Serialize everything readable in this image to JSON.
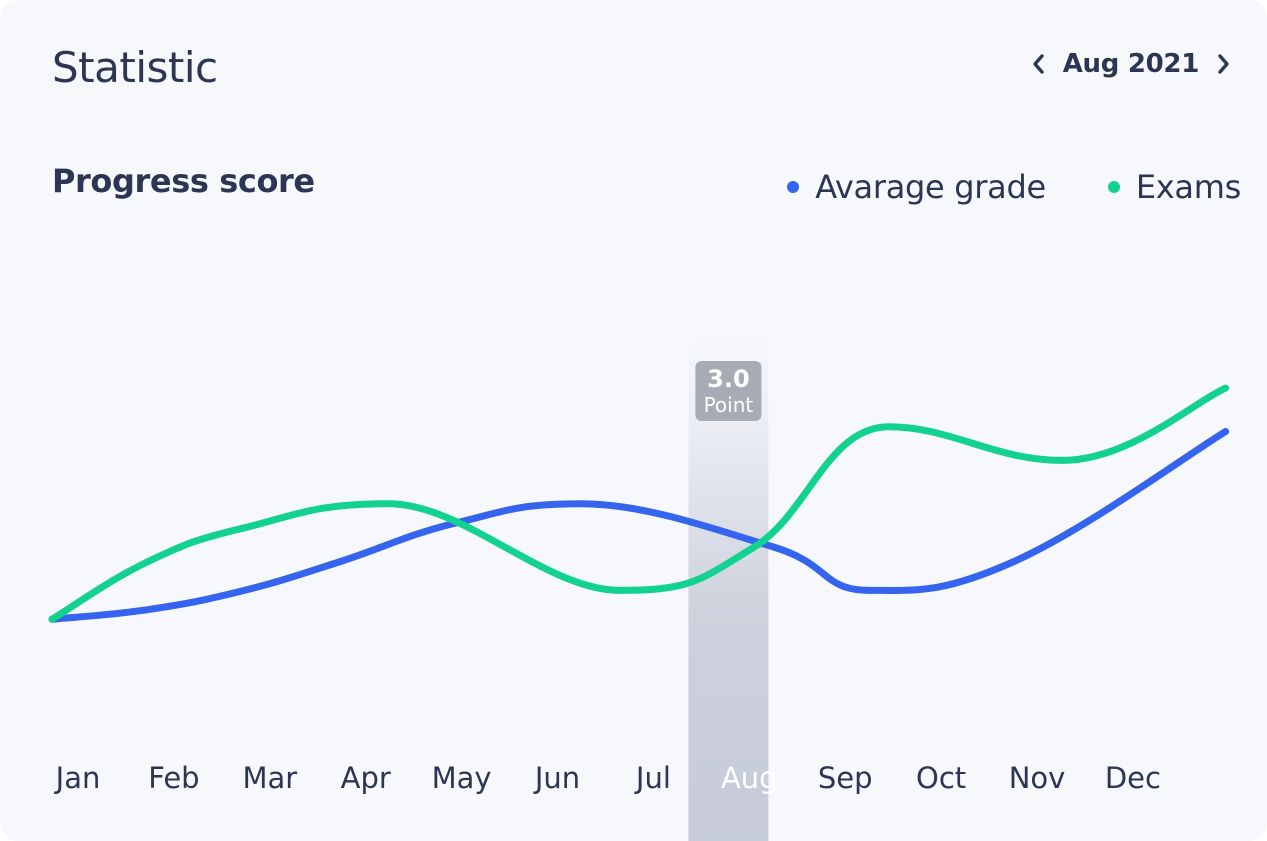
{
  "header": {
    "title": "Statistic",
    "period_label": "Aug 2021"
  },
  "icons": {
    "prev": "chevron-left-icon",
    "next": "chevron-right-icon"
  },
  "colors": {
    "text": "#2c3553",
    "background": "#f7f8fc",
    "average_grade": "#3565ef",
    "exams": "#13d28f",
    "highlight_band": "#c6cbd8",
    "tooltip_bg": "#a7abb4"
  },
  "chart_data": {
    "type": "line",
    "title": "Progress score",
    "categories": [
      "Jan",
      "Feb",
      "Mar",
      "Apr",
      "May",
      "Jun",
      "Jul",
      "Aug",
      "Sep",
      "Oct",
      "Nov",
      "Dec"
    ],
    "x_end": 12.2,
    "series": [
      {
        "name": "Avarage grade",
        "color": "#3565ef",
        "x": [
          0,
          1,
          2,
          3,
          4.2,
          5.5,
          7.5,
          8.5,
          10,
          12.2
        ],
        "values": [
          1.55,
          1.65,
          1.85,
          2.15,
          2.55,
          2.75,
          2.3,
          1.85,
          2.15,
          3.5
        ]
      },
      {
        "name": "Exams",
        "color": "#13d28f",
        "x": [
          0,
          1,
          2,
          3.5,
          5.9,
          7.3,
          8.7,
          10.5,
          12.2
        ],
        "values": [
          1.55,
          2.15,
          2.5,
          2.75,
          1.85,
          2.3,
          3.55,
          3.2,
          3.95
        ]
      }
    ],
    "ylim": [
      0.4,
      5.8
    ],
    "highlight": {
      "category": "Aug",
      "value": "3.0",
      "unit": "Point"
    },
    "legend_position": "top-right",
    "grid": false
  }
}
